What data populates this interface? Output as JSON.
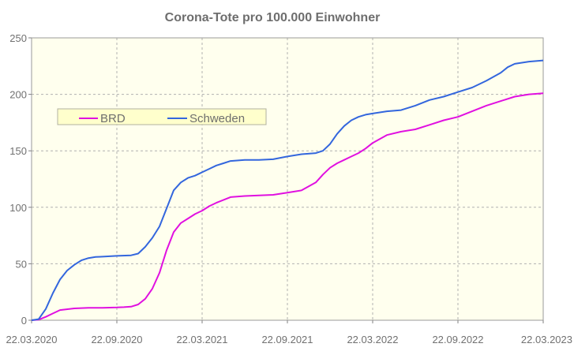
{
  "chart_data": {
    "type": "line",
    "title": "Corona-Tote pro 100.000 Einwohner",
    "xlabel": "",
    "ylabel": "",
    "x_ticks": [
      "22.03.2020",
      "22.09.2020",
      "22.03.2021",
      "22.09.2021",
      "22.03.2022",
      "22.09.2022",
      "22.03.2023"
    ],
    "ylim": [
      0,
      250
    ],
    "y_ticks": [
      0,
      50,
      100,
      150,
      200,
      250
    ],
    "grid": true,
    "legend_position": "upper-left",
    "series": [
      {
        "name": "BRD",
        "color": "#e010e0",
        "x_months": [
          0,
          0.5,
          1,
          1.5,
          2,
          3,
          4,
          5,
          6,
          6.5,
          7,
          7.5,
          8,
          8.5,
          9,
          9.5,
          10,
          10.5,
          11,
          11.5,
          12,
          12.5,
          13,
          14,
          15,
          16,
          17,
          18,
          19,
          20,
          20.5,
          21,
          21.5,
          22,
          22.5,
          23,
          23.5,
          24,
          25,
          26,
          27,
          28,
          29,
          30,
          31,
          32,
          33,
          34,
          35,
          36
        ],
        "values": [
          0,
          0.5,
          3,
          6,
          9,
          10.5,
          11,
          11,
          11.3,
          11.6,
          12,
          14,
          19,
          28,
          42,
          62,
          78,
          86,
          90,
          94,
          97,
          101,
          104,
          109,
          110,
          110.5,
          111,
          113,
          115,
          122,
          129,
          135,
          139,
          142,
          145,
          148,
          152,
          157,
          164,
          167,
          169,
          173,
          177,
          180,
          185,
          190,
          194,
          198,
          200,
          201
        ]
      },
      {
        "name": "Schweden",
        "color": "#3366dd",
        "x_months": [
          0,
          0.5,
          1,
          1.5,
          2,
          2.5,
          3,
          3.5,
          4,
          4.5,
          5,
          6,
          7,
          7.5,
          8,
          8.5,
          9,
          9.5,
          10,
          10.5,
          11,
          11.5,
          12,
          12.5,
          13,
          13.5,
          14,
          15,
          16,
          17,
          18,
          19,
          20,
          20.5,
          21,
          21.5,
          22,
          22.5,
          23,
          23.5,
          24,
          25,
          26,
          27,
          28,
          29,
          30,
          31,
          32,
          33,
          33.5,
          34,
          34.5,
          35,
          35.5,
          36
        ],
        "values": [
          0,
          1,
          10,
          24,
          36,
          44,
          49,
          53,
          55,
          56,
          56.3,
          57,
          57.5,
          59,
          65,
          73,
          83,
          99,
          115,
          122,
          126,
          128,
          131,
          134,
          137,
          139,
          141,
          142,
          142,
          142.5,
          145,
          147,
          148,
          150,
          156,
          165,
          172,
          177,
          180,
          182,
          183,
          185,
          186,
          190,
          195,
          198,
          202,
          206,
          212,
          219,
          224,
          227,
          228,
          229,
          229.5,
          230
        ]
      }
    ]
  }
}
